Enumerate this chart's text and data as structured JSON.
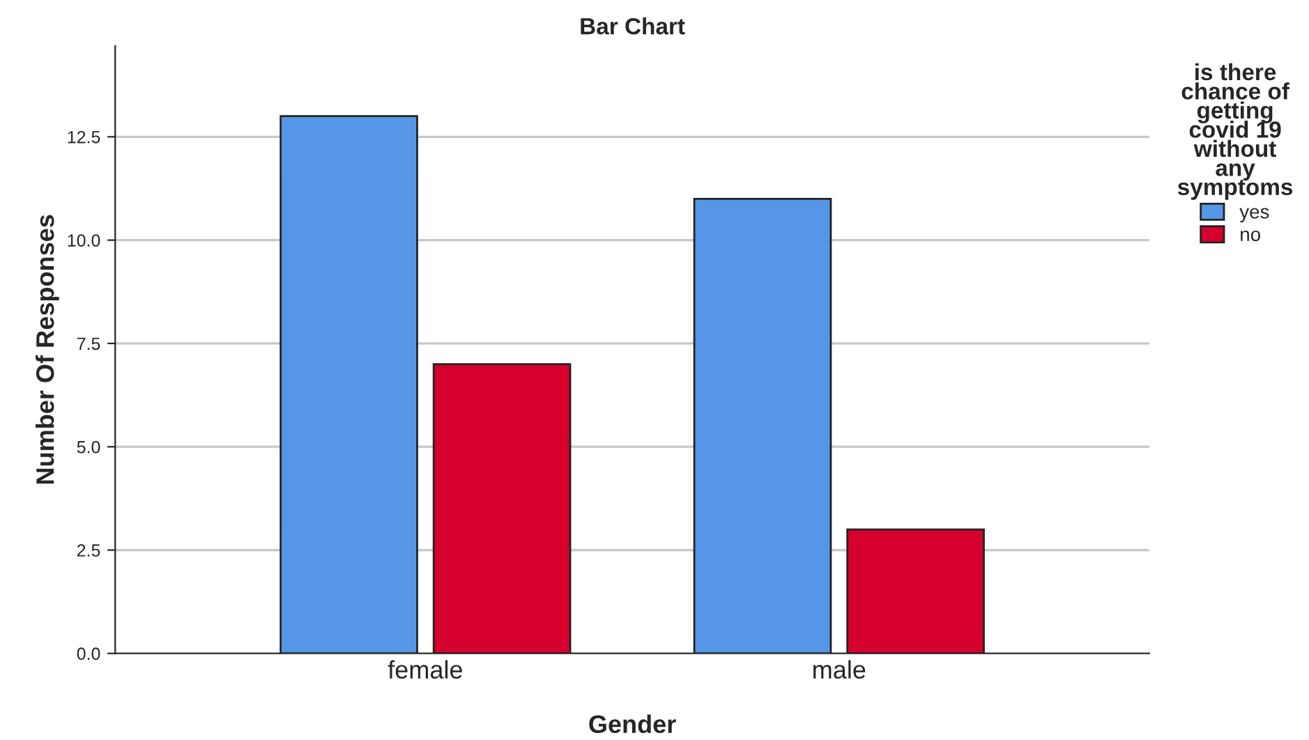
{
  "chart_data": {
    "type": "bar",
    "title": "Bar Chart",
    "xlabel": "Gender",
    "ylabel": "Number Of Responses",
    "categories": [
      "female",
      "male"
    ],
    "series": [
      {
        "name": "yes",
        "color": "#5597e6",
        "values": [
          13,
          11
        ]
      },
      {
        "name": "no",
        "color": "#d6002e",
        "values": [
          7,
          3
        ]
      }
    ],
    "legend_title": "is there\nchance of\ngetting\ncovid 19\nwithout\nany\nsymptoms",
    "legend": "right",
    "ylim": [
      0,
      14.7
    ],
    "yticks": [
      {
        "value": 0,
        "label": "0.0"
      },
      {
        "value": 2.5,
        "label": "2.5"
      },
      {
        "value": 5,
        "label": "5.0"
      },
      {
        "value": 7.5,
        "label": "7.5"
      },
      {
        "value": 10,
        "label": "10.0"
      },
      {
        "value": 12.5,
        "label": "12.5"
      }
    ],
    "grid": "y"
  }
}
